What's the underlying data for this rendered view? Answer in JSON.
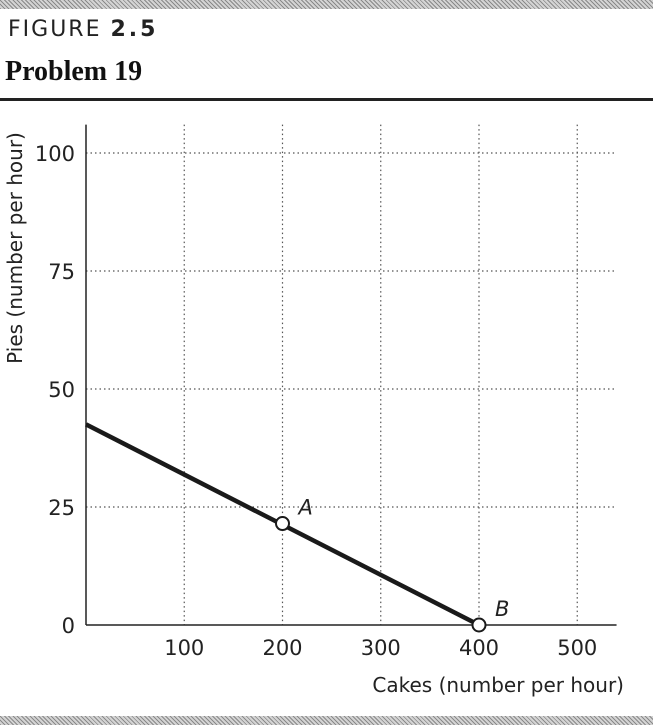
{
  "figure": {
    "label": "FIGURE",
    "number": "2.5",
    "title": "Problem 19"
  },
  "chart_data": {
    "type": "line",
    "title": "Problem 19",
    "xlabel": "Cakes (number per hour)",
    "ylabel": "Pies (number per hour)",
    "xlim": [
      0,
      540
    ],
    "ylim": [
      0,
      106
    ],
    "x_ticks": [
      100,
      200,
      300,
      400,
      500
    ],
    "x_tick_labels": [
      "100",
      "200",
      "300",
      "400",
      "500"
    ],
    "y_ticks": [
      0,
      25,
      50,
      75,
      100
    ],
    "y_tick_labels": [
      "0",
      "25",
      "50",
      "75",
      "100"
    ],
    "grid": "dotted",
    "series": [
      {
        "x": [
          0,
          400
        ],
        "y": [
          42.5,
          0
        ],
        "color": "#1a1a1a"
      }
    ],
    "points": [
      {
        "label": "A",
        "x": 200,
        "y": 21.5
      },
      {
        "label": "B",
        "x": 400,
        "y": 0
      }
    ]
  }
}
